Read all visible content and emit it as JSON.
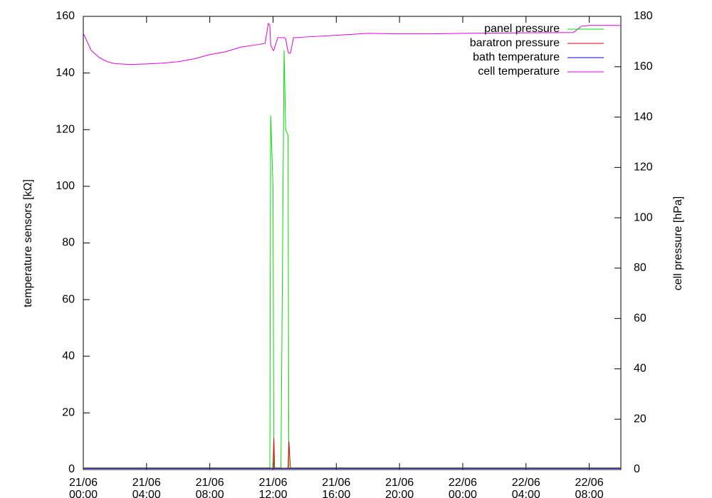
{
  "chart_data": {
    "type": "line",
    "y_label": "temperature sensors [kΩ]",
    "y2_label": "cell pressure [hPa]",
    "x": [
      0,
      0.5,
      1,
      1.5,
      2,
      3,
      4,
      5,
      6,
      7,
      8,
      9,
      10,
      11,
      11.5,
      11.7,
      11.8,
      11.85,
      12,
      12.05,
      12.1,
      12.3,
      12.5,
      12.7,
      12.8,
      12.95,
      13,
      13.1,
      13.3,
      13.5,
      14,
      16,
      18,
      20,
      22,
      24,
      28,
      31,
      31.5,
      32,
      34
    ],
    "xlim": [
      0,
      34
    ],
    "xticks": [
      {
        "value": 0,
        "label": "21/06 00:00"
      },
      {
        "value": 4,
        "label": "21/06 04:00"
      },
      {
        "value": 8,
        "label": "21/06 08:00"
      },
      {
        "value": 12,
        "label": "21/06 12:00"
      },
      {
        "value": 16,
        "label": "21/06 16:00"
      },
      {
        "value": 20,
        "label": "21/06 20:00"
      },
      {
        "value": 24,
        "label": "22/06 00:00"
      },
      {
        "value": 28,
        "label": "22/06 04:00"
      },
      {
        "value": 32,
        "label": "22/06 08:00"
      }
    ],
    "ylim": [
      0,
      160
    ],
    "yticks": [
      0,
      20,
      40,
      60,
      80,
      100,
      120,
      140,
      160
    ],
    "y2lim": [
      0,
      180
    ],
    "y2ticks": [
      0,
      20,
      40,
      60,
      80,
      100,
      120,
      140,
      160,
      180
    ],
    "legend": "upper right",
    "series": [
      {
        "name": "panel pressure",
        "color": "#00e000",
        "values": [
          0.6,
          0.6,
          0.6,
          0.6,
          0.6,
          0.6,
          0.6,
          0.6,
          0.6,
          0.6,
          0.6,
          0.6,
          0.6,
          0.6,
          0.6,
          0.6,
          0.6,
          125,
          100,
          0.5,
          0.6,
          0.6,
          0.6,
          148,
          120,
          118,
          0.5,
          0.6,
          0.6,
          0.6,
          0.6,
          0.6,
          0.6,
          0.6,
          0.6,
          0.6,
          0.6,
          0.6,
          0.6,
          0.6,
          0.6
        ]
      },
      {
        "name": "baratron pressure",
        "color": "#e00000",
        "values": [
          0.5,
          0.5,
          0.5,
          0.5,
          0.5,
          0.5,
          0.5,
          0.5,
          0.5,
          0.5,
          0.5,
          0.5,
          0.5,
          0.5,
          0.5,
          0.5,
          0.5,
          0.5,
          0.5,
          11,
          0.5,
          0.5,
          0.5,
          0.5,
          0.5,
          0.5,
          10,
          0.5,
          0.5,
          0.5,
          0.5,
          0.5,
          0.5,
          0.5,
          0.5,
          0.5,
          0.5,
          0.5,
          0.5,
          0.5,
          0.5
        ]
      },
      {
        "name": "bath temperature",
        "color": "#0000e0",
        "values": [
          0.4,
          0.4,
          0.4,
          0.4,
          0.4,
          0.4,
          0.4,
          0.4,
          0.4,
          0.4,
          0.4,
          0.4,
          0.4,
          0.4,
          0.4,
          0.4,
          0.4,
          0.4,
          0.4,
          0.4,
          0.4,
          0.4,
          0.4,
          0.4,
          0.4,
          0.4,
          0.4,
          0.4,
          0.4,
          0.4,
          0.4,
          0.4,
          0.4,
          0.4,
          0.4,
          0.4,
          0.4,
          0.4,
          0.4,
          0.4,
          0.4
        ]
      },
      {
        "name": "cell temperature",
        "color": "#e000e0",
        "values": [
          154,
          148,
          145.5,
          144,
          143.3,
          143,
          143.2,
          143.5,
          144,
          145,
          146.5,
          147.5,
          149.2,
          150,
          150.5,
          157.5,
          157,
          150,
          148,
          148,
          149,
          152.5,
          152.5,
          152.5,
          152,
          147.5,
          147,
          147,
          152.5,
          152.5,
          152.7,
          153.3,
          154,
          153.8,
          153.8,
          154,
          154.2,
          154.3,
          156.5,
          156.8,
          156.8
        ]
      }
    ]
  }
}
